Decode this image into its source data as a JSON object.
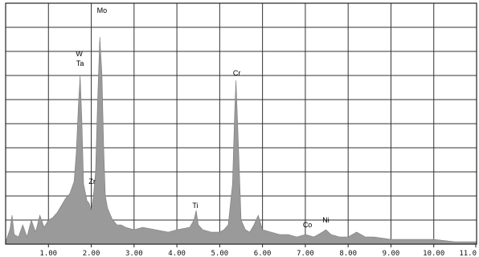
{
  "chart_data": {
    "type": "area",
    "title": "",
    "xlabel": "",
    "ylabel": "",
    "xlim": [
      0,
      11
    ],
    "ylim": [
      0,
      100
    ],
    "grid": true,
    "x_ticks": [
      {
        "value": 1,
        "label": "1.00"
      },
      {
        "value": 2,
        "label": "2.00"
      },
      {
        "value": 3,
        "label": "3.00"
      },
      {
        "value": 4,
        "label": "4.00"
      },
      {
        "value": 5,
        "label": "5.00"
      },
      {
        "value": 6,
        "label": "6.00"
      },
      {
        "value": 7,
        "label": "7.00"
      },
      {
        "value": 8,
        "label": "8.00"
      },
      {
        "value": 9,
        "label": "9.00"
      },
      {
        "value": 10,
        "label": "10.00"
      },
      {
        "value": 11,
        "label": "11.0"
      }
    ],
    "y_gridlines": 10,
    "series": [
      {
        "fill": "#9a9a9a",
        "x": [
          0.0,
          0.1,
          0.15,
          0.2,
          0.3,
          0.4,
          0.5,
          0.6,
          0.7,
          0.8,
          0.9,
          1.0,
          1.1,
          1.2,
          1.3,
          1.4,
          1.5,
          1.6,
          1.65,
          1.7,
          1.74,
          1.78,
          1.82,
          1.9,
          1.95,
          2.0,
          2.05,
          2.1,
          2.15,
          2.2,
          2.25,
          2.29,
          2.33,
          2.38,
          2.45,
          2.5,
          2.6,
          2.7,
          2.8,
          3.0,
          3.2,
          3.5,
          3.8,
          4.0,
          4.3,
          4.4,
          4.45,
          4.5,
          4.6,
          4.8,
          5.0,
          5.1,
          5.2,
          5.3,
          5.35,
          5.38,
          5.42,
          5.5,
          5.6,
          5.7,
          5.8,
          5.9,
          6.0,
          6.2,
          6.4,
          6.6,
          6.8,
          7.0,
          7.2,
          7.4,
          7.48,
          7.6,
          7.8,
          8.0,
          8.2,
          8.4,
          8.6,
          9.0,
          9.5,
          10.0,
          10.5,
          11.0
        ],
        "y": [
          1,
          6,
          12,
          4,
          3,
          8,
          3,
          10,
          5,
          12,
          7,
          10,
          11,
          13,
          16,
          19,
          21,
          26,
          38,
          58,
          70,
          52,
          25,
          18,
          17,
          14,
          20,
          30,
          60,
          86,
          70,
          40,
          20,
          15,
          12,
          10,
          8,
          8,
          7,
          6,
          7,
          6,
          5,
          6,
          7,
          10,
          14,
          8,
          6,
          5,
          5,
          6,
          8,
          25,
          55,
          68,
          50,
          10,
          6,
          5,
          8,
          12,
          6,
          5,
          4,
          4,
          3,
          4,
          3,
          5,
          6,
          4,
          3,
          3,
          5,
          3,
          3,
          2,
          2,
          2,
          1,
          1
        ]
      }
    ],
    "annotations": [
      {
        "text": "Mo",
        "x": 2.25,
        "y": 96
      },
      {
        "text": "W",
        "x": 1.72,
        "y": 78
      },
      {
        "text": "Ta",
        "x": 1.74,
        "y": 74
      },
      {
        "text": "Zr",
        "x": 2.02,
        "y": 25
      },
      {
        "text": "Ti",
        "x": 4.43,
        "y": 15
      },
      {
        "text": "Cr",
        "x": 5.4,
        "y": 70
      },
      {
        "text": "Co",
        "x": 7.05,
        "y": 7
      },
      {
        "text": "Ni",
        "x": 7.48,
        "y": 9
      }
    ]
  }
}
